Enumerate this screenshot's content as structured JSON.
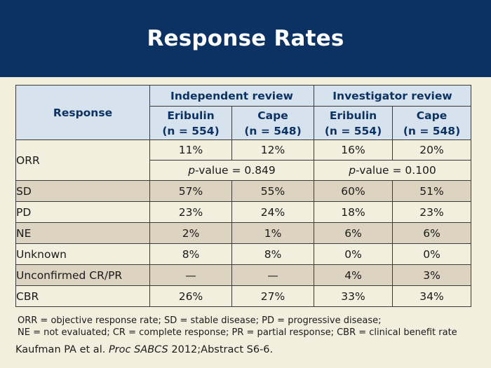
{
  "title": "Response Rates",
  "table": {
    "response_header": "Response",
    "group_headers": [
      "Independent review",
      "Investigator review"
    ],
    "arm_headers": [
      {
        "name": "Eribulin",
        "n": "(n = 554)"
      },
      {
        "name": "Cape",
        "n": "(n = 548)"
      },
      {
        "name": "Eribulin",
        "n": "(n = 554)"
      },
      {
        "name": "Cape",
        "n": "(n = 548)"
      }
    ],
    "orr": {
      "label": "ORR",
      "values": [
        "11%",
        "12%",
        "16%",
        "20%"
      ],
      "pvalues": [
        {
          "prefix": "p",
          "rest": "-value = 0.849"
        },
        {
          "prefix": "p",
          "rest": "-value = 0.100"
        }
      ]
    },
    "rows": [
      {
        "label": "SD",
        "values": [
          "57%",
          "55%",
          "60%",
          "51%"
        ]
      },
      {
        "label": "PD",
        "values": [
          "23%",
          "24%",
          "18%",
          "23%"
        ]
      },
      {
        "label": "NE",
        "values": [
          "2%",
          "1%",
          "6%",
          "6%"
        ]
      },
      {
        "label": "Unknown",
        "values": [
          "8%",
          "8%",
          "0%",
          "0%"
        ]
      },
      {
        "label": "Unconfirmed CR/PR",
        "values": [
          "—",
          "—",
          "4%",
          "3%"
        ]
      },
      {
        "label": "CBR",
        "values": [
          "26%",
          "27%",
          "33%",
          "34%"
        ]
      }
    ]
  },
  "footnote": {
    "line1": "ORR = objective response rate; SD = stable disease; PD = progressive disease;",
    "line2": "NE = not evaluated; CR = complete response; PR = partial response; CBR = clinical benefit rate"
  },
  "citation": {
    "authors": "Kaufman PA et al. ",
    "journal": "Proc SABCS",
    "rest": " 2012;Abstract S6-6."
  },
  "colors": {
    "title_bar": "#0c3263",
    "header_fill": "#d6e3ee",
    "header_text": "#0c3263",
    "background": "#f3efdf",
    "shaded_row": "#dcd4c0"
  }
}
